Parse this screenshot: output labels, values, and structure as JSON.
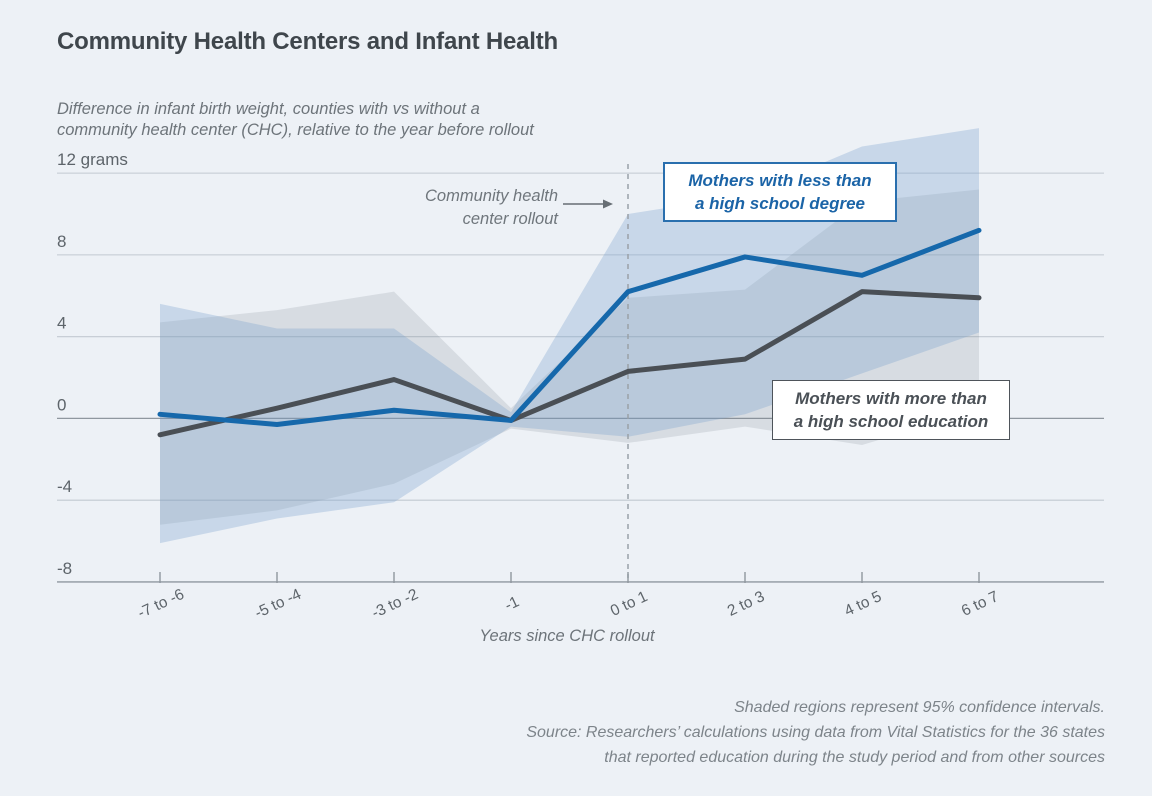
{
  "page": {
    "title": "Community Health Centers and Infant Health",
    "subtitle_lines": [
      "Difference in infant birth weight, counties with vs without a",
      "community health center (CHC), relative to the year before rollout"
    ],
    "footnote_lines": [
      "Shaded regions represent 95% confidence intervals.",
      "Source: Researchers’ calculations using data from Vital Statistics for the 36 states",
      "that reported education during the study period and from other sources"
    ]
  },
  "chart_data": {
    "type": "line",
    "title": "Community Health Centers and Infant Health",
    "xlabel": "Years since CHC rollout",
    "ylabel_unit": "grams",
    "categories": [
      "-7 to -6",
      "-5 to -4",
      "-3 to -2",
      "-1",
      "0 to 1",
      "2 to 3",
      "4 to 5",
      "6 to 7"
    ],
    "yticks": [
      {
        "value": 12,
        "label": "12 grams"
      },
      {
        "value": 8,
        "label": "8"
      },
      {
        "value": 4,
        "label": "4"
      },
      {
        "value": 0,
        "label": "0"
      },
      {
        "value": -4,
        "label": "-4"
      },
      {
        "value": -8,
        "label": "-8"
      }
    ],
    "ylim": [
      -8,
      14.5
    ],
    "grid": true,
    "legend_position": "inline-labels",
    "rollout_index": 4,
    "annotation_lines": [
      "Community health",
      "center rollout"
    ],
    "ci_note": "Shaded regions represent 95% confidence intervals.",
    "series": [
      {
        "name": "Mothers with less than a high school degree",
        "label_lines": [
          "Mothers with less than",
          "a high school degree"
        ],
        "color": "#1668ab",
        "band_fill": "rgba(120,163,205,0.32)",
        "values": [
          0.2,
          -0.3,
          0.4,
          -0.1,
          6.2,
          7.9,
          7.0,
          9.2
        ],
        "ci_high": [
          5.6,
          4.4,
          4.4,
          0.3,
          10.0,
          10.9,
          13.3,
          14.2
        ],
        "ci_low": [
          -6.1,
          -4.9,
          -4.1,
          -0.4,
          -0.9,
          0.2,
          2.2,
          4.2
        ]
      },
      {
        "name": "Mothers with more than a high school education",
        "label_lines": [
          "Mothers with more than",
          "a high school education"
        ],
        "color": "#4a4f55",
        "band_fill": "rgba(115,125,138,0.18)",
        "values": [
          -0.8,
          0.5,
          1.9,
          -0.1,
          2.3,
          2.9,
          6.2,
          5.9
        ],
        "ci_high": [
          4.7,
          5.3,
          6.2,
          0.5,
          5.9,
          6.3,
          10.6,
          11.2
        ],
        "ci_low": [
          -5.2,
          -4.5,
          -3.2,
          -0.5,
          -1.2,
          -0.4,
          -1.3,
          0.4
        ]
      }
    ],
    "colors": {
      "background": "#edf1f6",
      "gridline": "#c2c9d1",
      "zero_line": "#8f979f",
      "axis_line": "#8f979f",
      "dashed_line": "#9aa1a8",
      "arrow": "#676e74",
      "tick_label": "#5d646a"
    }
  }
}
